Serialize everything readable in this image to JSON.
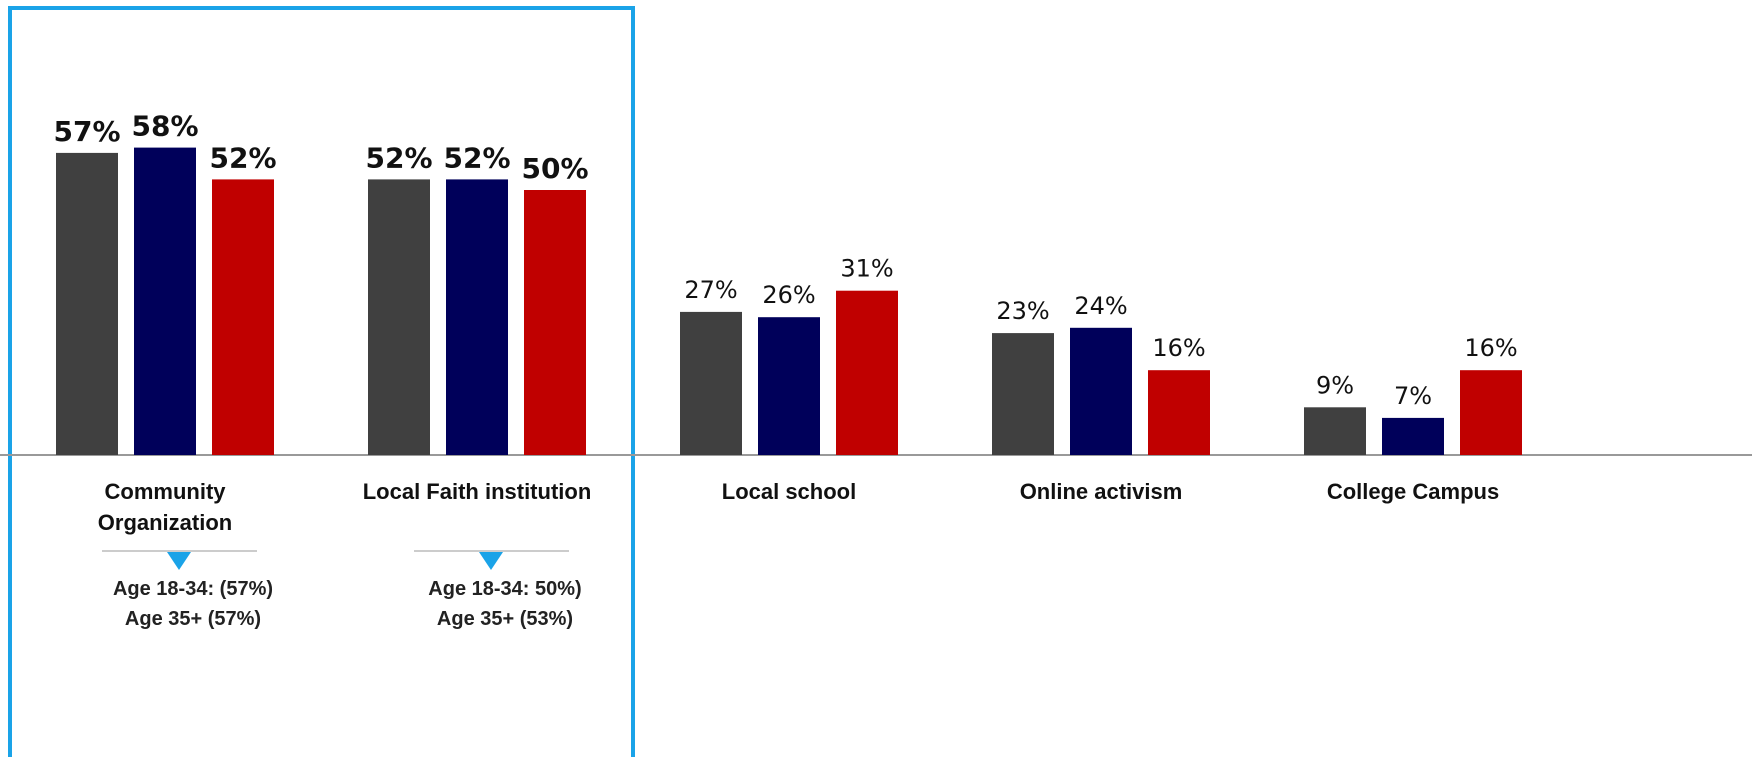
{
  "chart_data": {
    "type": "bar",
    "categories": [
      "Community Organization",
      "Local Faith institution",
      "Local school",
      "Online activism",
      "College Campus"
    ],
    "series": [
      {
        "color": "#404040",
        "values": [
          57,
          52,
          27,
          23,
          9
        ],
        "value_labels": [
          "57%",
          "52%",
          "27%",
          "23%",
          "9%"
        ]
      },
      {
        "color": "#00005a",
        "values": [
          58,
          52,
          26,
          24,
          7
        ],
        "value_labels": [
          "58%",
          "52%",
          "26%",
          "24%",
          "7%"
        ]
      },
      {
        "color": "#c00000",
        "values": [
          52,
          50,
          31,
          16,
          16
        ],
        "value_labels": [
          "52%",
          "50%",
          "31%",
          "16%",
          "16%"
        ]
      }
    ],
    "annotations": [
      [
        "Age 18-34: (57%)",
        "Age 35+ (57%)"
      ],
      [
        "Age 18-34: 50%)",
        "Age 35+ (53%)"
      ]
    ]
  }
}
